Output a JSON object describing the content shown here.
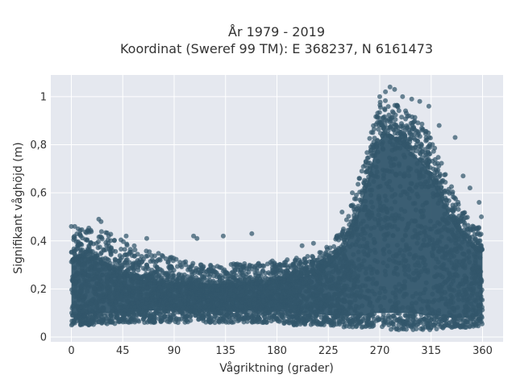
{
  "chart_data": {
    "type": "scatter",
    "title_line1": "År 1979 - 2019",
    "title_line2": "Koordinat (Sweref 99 TM): E 368237, N 6161473",
    "xlabel": "Vågriktning (grader)",
    "ylabel": "Signifikant våghöjd (m)",
    "xlim": [
      -18,
      378
    ],
    "ylim": [
      -0.02,
      1.09
    ],
    "xticks": [
      0,
      45,
      90,
      135,
      180,
      225,
      270,
      315,
      360
    ],
    "xtick_labels": [
      "0",
      "45",
      "90",
      "135",
      "180",
      "225",
      "270",
      "315",
      "360"
    ],
    "yticks": [
      0,
      0.2,
      0.4,
      0.6,
      0.8,
      1
    ],
    "ytick_labels": [
      "0",
      "0,2",
      "0,4",
      "0,6",
      "0,8",
      "1"
    ],
    "grid": true,
    "marker_color": "#32566b",
    "plot_bg": "#e5e8ef",
    "envelope": {
      "x": [
        0,
        10,
        20,
        30,
        45,
        60,
        75,
        90,
        105,
        120,
        135,
        150,
        165,
        180,
        195,
        210,
        225,
        240,
        250,
        260,
        265,
        270,
        275,
        280,
        290,
        300,
        310,
        320,
        330,
        340,
        350,
        360
      ],
      "y_min": [
        0.05,
        0.05,
        0.05,
        0.05,
        0.06,
        0.06,
        0.06,
        0.06,
        0.06,
        0.06,
        0.06,
        0.06,
        0.06,
        0.06,
        0.05,
        0.05,
        0.05,
        0.04,
        0.04,
        0.04,
        0.04,
        0.03,
        0.03,
        0.03,
        0.03,
        0.03,
        0.03,
        0.03,
        0.04,
        0.04,
        0.04,
        0.05
      ],
      "y_max": [
        0.42,
        0.46,
        0.45,
        0.44,
        0.4,
        0.37,
        0.35,
        0.33,
        0.32,
        0.3,
        0.3,
        0.31,
        0.31,
        0.32,
        0.33,
        0.34,
        0.38,
        0.48,
        0.62,
        0.8,
        0.92,
        0.98,
        1.0,
        0.98,
        0.95,
        0.92,
        0.88,
        0.78,
        0.66,
        0.55,
        0.48,
        0.45
      ],
      "y_core_low": [
        0.09,
        0.09,
        0.1,
        0.1,
        0.1,
        0.11,
        0.11,
        0.11,
        0.11,
        0.11,
        0.11,
        0.11,
        0.11,
        0.11,
        0.1,
        0.1,
        0.09,
        0.09,
        0.09,
        0.09,
        0.1,
        0.1,
        0.1,
        0.1,
        0.1,
        0.1,
        0.09,
        0.09,
        0.08,
        0.08,
        0.08,
        0.09
      ],
      "y_core_high": [
        0.31,
        0.34,
        0.32,
        0.3,
        0.26,
        0.24,
        0.23,
        0.22,
        0.22,
        0.21,
        0.21,
        0.22,
        0.22,
        0.23,
        0.24,
        0.26,
        0.3,
        0.38,
        0.5,
        0.66,
        0.76,
        0.82,
        0.85,
        0.83,
        0.8,
        0.76,
        0.71,
        0.62,
        0.52,
        0.44,
        0.38,
        0.36
      ]
    },
    "outliers": [
      {
        "x": 0,
        "y": 0.46
      },
      {
        "x": 3,
        "y": 0.46
      },
      {
        "x": 6,
        "y": 0.45
      },
      {
        "x": 24,
        "y": 0.49
      },
      {
        "x": 26,
        "y": 0.48
      },
      {
        "x": 48,
        "y": 0.42
      },
      {
        "x": 66,
        "y": 0.41
      },
      {
        "x": 107,
        "y": 0.42
      },
      {
        "x": 110,
        "y": 0.41
      },
      {
        "x": 133,
        "y": 0.42
      },
      {
        "x": 158,
        "y": 0.43
      },
      {
        "x": 202,
        "y": 0.38
      },
      {
        "x": 212,
        "y": 0.39
      },
      {
        "x": 237,
        "y": 0.52
      },
      {
        "x": 246,
        "y": 0.6
      },
      {
        "x": 252,
        "y": 0.66
      },
      {
        "x": 270,
        "y": 1.0
      },
      {
        "x": 275,
        "y": 1.02
      },
      {
        "x": 279,
        "y": 1.04
      },
      {
        "x": 283,
        "y": 1.03
      },
      {
        "x": 290,
        "y": 1.0
      },
      {
        "x": 298,
        "y": 0.99
      },
      {
        "x": 305,
        "y": 0.98
      },
      {
        "x": 313,
        "y": 0.96
      },
      {
        "x": 322,
        "y": 0.88
      },
      {
        "x": 336,
        "y": 0.83
      },
      {
        "x": 343,
        "y": 0.67
      },
      {
        "x": 349,
        "y": 0.62
      },
      {
        "x": 357,
        "y": 0.56
      },
      {
        "x": 359,
        "y": 0.5
      }
    ]
  }
}
